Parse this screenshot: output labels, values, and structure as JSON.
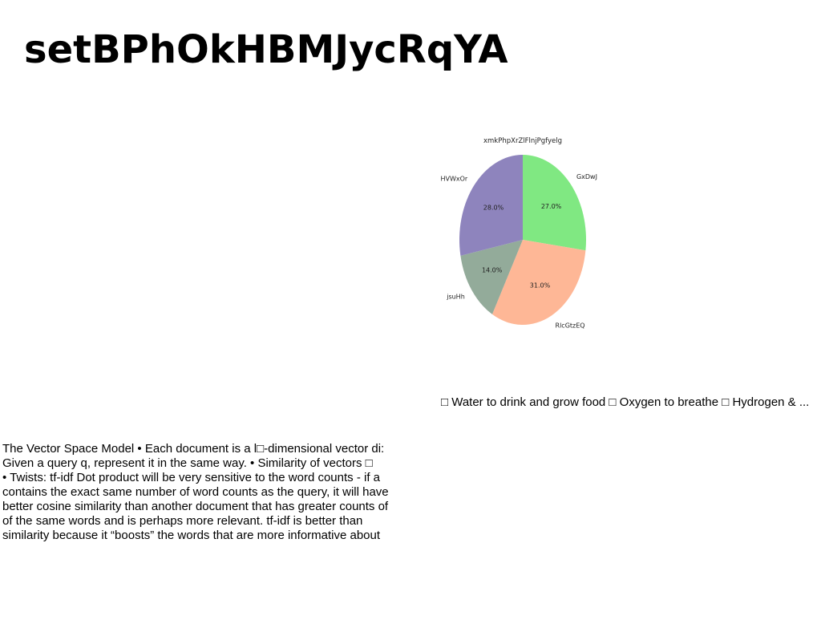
{
  "title": "setBPhOkHBMJycRqYA",
  "chart_data": {
    "type": "pie",
    "title": "xmkPhpXrZlFlnjPgfyelg",
    "slices": [
      {
        "label": "GxDwJ",
        "value": 27.0,
        "pct_label": "27.0%",
        "color": "#80e882"
      },
      {
        "label": "RlcGtzEQ",
        "value": 31.0,
        "pct_label": "31.0%",
        "color": "#feb796"
      },
      {
        "label": "jsuHh",
        "value": 14.0,
        "pct_label": "14.0%",
        "color": "#93ab9a"
      },
      {
        "label": "HVWxOr",
        "value": 28.0,
        "pct_label": "28.0%",
        "color": "#8e84bd"
      }
    ],
    "start_angle": "top, clockwise"
  },
  "bullets_line": "□ Water to drink and grow food □ Oxygen to breathe □ Hydrogen & ...",
  "body_lines": [
    "The Vector Space Model • Each document is a l□-dimensional vector di:",
    "Given a query q, represent it in the same way. • Similarity of vectors □",
    "• Twists:  tf-idf Dot product will be very sensitive to the word counts - if a",
    "contains the exact same number of word counts as the query, it will have",
    "better cosine similarity than another document that has greater counts of",
    "of the same words and is perhaps more relevant. tf-idf is better than",
    "similarity because it “boosts” the words that are more informative about"
  ]
}
